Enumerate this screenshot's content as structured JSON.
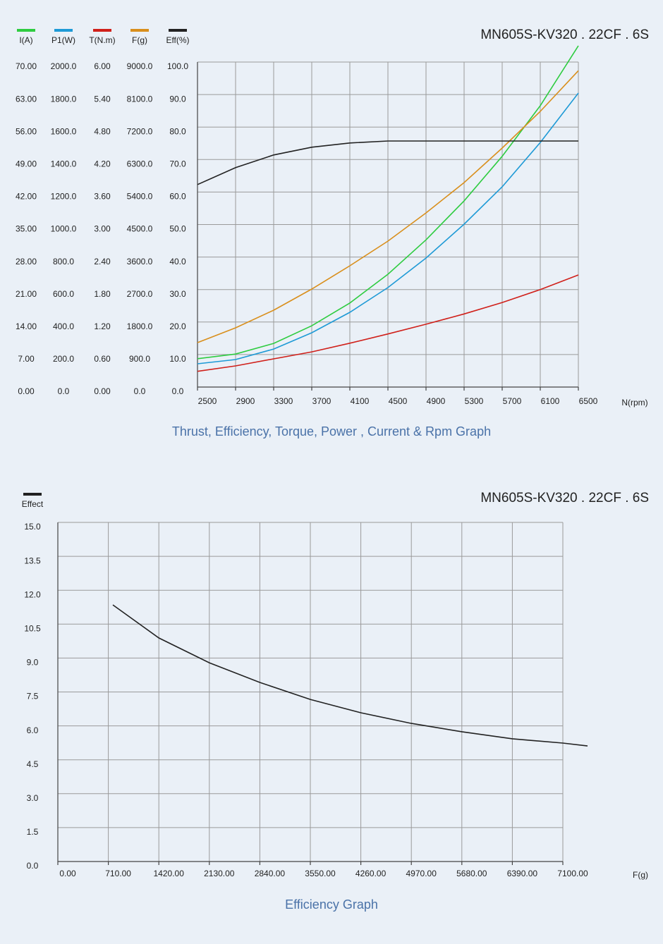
{
  "chart_data": [
    {
      "type": "line",
      "title": "MN605S-KV320 . 22CF . 6S",
      "caption": "Thrust, Efficiency, Torque, Power , Current & Rpm Graph",
      "x_label": "N(rpm)",
      "x": [
        2500,
        2900,
        3300,
        3700,
        4100,
        4500,
        4900,
        5300,
        5700,
        6100,
        6500
      ],
      "xlim": [
        2500,
        6500
      ],
      "xticks": [
        2500,
        2900,
        3300,
        3700,
        4100,
        4500,
        4900,
        5300,
        5700,
        6100,
        6500
      ],
      "grid": true,
      "y_axes": [
        {
          "ylim": [
            0,
            70
          ],
          "yticks": [
            {
              "value": 0,
              "label": "0.00"
            },
            {
              "value": 7,
              "label": "7.00"
            },
            {
              "value": 14,
              "label": "14.00"
            },
            {
              "value": 21,
              "label": "21.00"
            },
            {
              "value": 28,
              "label": "28.00"
            },
            {
              "value": 35,
              "label": "35.00"
            },
            {
              "value": 42,
              "label": "42.00"
            },
            {
              "value": 49,
              "label": "49.00"
            },
            {
              "value": 56,
              "label": "56.00"
            },
            {
              "value": 63,
              "label": "63.00"
            },
            {
              "value": 70,
              "label": "70.00"
            }
          ]
        },
        {
          "ylim": [
            0,
            2000
          ],
          "yticks": [
            {
              "value": 0,
              "label": "0.0"
            },
            {
              "value": 200,
              "label": "200.0"
            },
            {
              "value": 400,
              "label": "400.0"
            },
            {
              "value": 600,
              "label": "600.0"
            },
            {
              "value": 800,
              "label": "800.0"
            },
            {
              "value": 1000,
              "label": "1000.0"
            },
            {
              "value": 1200,
              "label": "1200.0"
            },
            {
              "value": 1400,
              "label": "1400.0"
            },
            {
              "value": 1600,
              "label": "1600.0"
            },
            {
              "value": 1800,
              "label": "1800.0"
            },
            {
              "value": 2000,
              "label": "2000.0"
            }
          ]
        },
        {
          "ylim": [
            0,
            6
          ],
          "yticks": [
            {
              "value": 0,
              "label": "0.00"
            },
            {
              "value": 0.6,
              "label": "0.60"
            },
            {
              "value": 1.2,
              "label": "1.20"
            },
            {
              "value": 1.8,
              "label": "1.80"
            },
            {
              "value": 2.4,
              "label": "2.40"
            },
            {
              "value": 3,
              "label": "3.00"
            },
            {
              "value": 3.6,
              "label": "3.60"
            },
            {
              "value": 4.2,
              "label": "4.20"
            },
            {
              "value": 4.8,
              "label": "4.80"
            },
            {
              "value": 5.4,
              "label": "5.40"
            },
            {
              "value": 6,
              "label": "6.00"
            }
          ]
        },
        {
          "ylim": [
            0,
            9000
          ],
          "yticks": [
            {
              "value": 0,
              "label": "0.0"
            },
            {
              "value": 900,
              "label": "900.0"
            },
            {
              "value": 1800,
              "label": "1800.0"
            },
            {
              "value": 2700,
              "label": "2700.0"
            },
            {
              "value": 3600,
              "label": "3600.0"
            },
            {
              "value": 4500,
              "label": "4500.0"
            },
            {
              "value": 5400,
              "label": "5400.0"
            },
            {
              "value": 6300,
              "label": "6300.0"
            },
            {
              "value": 7200,
              "label": "7200.0"
            },
            {
              "value": 8100,
              "label": "8100.0"
            },
            {
              "value": 9000,
              "label": "9000.0"
            }
          ]
        },
        {
          "ylim": [
            0,
            100
          ],
          "yticks": [
            {
              "value": 0,
              "label": "0.0"
            },
            {
              "value": 10,
              "label": "10.0"
            },
            {
              "value": 20,
              "label": "20.0"
            },
            {
              "value": 30,
              "label": "30.0"
            },
            {
              "value": 40,
              "label": "40.0"
            },
            {
              "value": 50,
              "label": "50.0"
            },
            {
              "value": 60,
              "label": "60.0"
            },
            {
              "value": 70,
              "label": "70.0"
            },
            {
              "value": 80,
              "label": "80.0"
            },
            {
              "value": 90,
              "label": "90.0"
            },
            {
              "value": 100,
              "label": "100.0"
            }
          ]
        }
      ],
      "series": [
        {
          "name": "I(A)",
          "color": "#2ecc40",
          "axis": 0,
          "values": [
            6.1,
            7.1,
            9.4,
            13.2,
            18.1,
            24.3,
            31.7,
            40.1,
            49.7,
            60.6,
            73.5
          ]
        },
        {
          "name": "P1(W)",
          "color": "#1e9ad6",
          "axis": 1,
          "values": [
            143,
            169,
            234,
            334,
            460,
            612,
            794,
            1002,
            1232,
            1505,
            1809
          ]
        },
        {
          "name": "T(N.m)",
          "color": "#d0201a",
          "axis": 2,
          "values": [
            0.29,
            0.39,
            0.52,
            0.65,
            0.81,
            0.98,
            1.16,
            1.35,
            1.56,
            1.8,
            2.07
          ]
        },
        {
          "name": "F(g)",
          "color": "#d98f1c",
          "axis": 3,
          "values": [
            1230,
            1640,
            2128,
            2714,
            3358,
            4041,
            4822,
            5662,
            6618,
            7634,
            8759
          ]
        },
        {
          "name": "Eff(%)",
          "color": "#222222",
          "axis": 4,
          "values": [
            62.3,
            67.5,
            71.4,
            73.8,
            75.1,
            75.7,
            75.7,
            75.7,
            75.7,
            75.7,
            75.7
          ]
        }
      ]
    },
    {
      "type": "line",
      "title": "MN605S-KV320 . 22CF . 6S",
      "caption": "Efficiency Graph",
      "x_label": "F(g)",
      "x": [
        773,
        1420,
        2130,
        2840,
        3550,
        4260,
        4970,
        5680,
        6390,
        7100,
        7447
      ],
      "xlim": [
        0,
        7100
      ],
      "xticks": [
        {
          "value": 0,
          "label": "0.00"
        },
        {
          "value": 710,
          "label": "710.00"
        },
        {
          "value": 1420,
          "label": "1420.00"
        },
        {
          "value": 2130,
          "label": "2130.00"
        },
        {
          "value": 2840,
          "label": "2840.00"
        },
        {
          "value": 3550,
          "label": "3550.00"
        },
        {
          "value": 4260,
          "label": "4260.00"
        },
        {
          "value": 4970,
          "label": "4970.00"
        },
        {
          "value": 5680,
          "label": "5680.00"
        },
        {
          "value": 6390,
          "label": "6390.00"
        },
        {
          "value": 7100,
          "label": "7100.00"
        }
      ],
      "ylim": [
        0,
        15
      ],
      "yticks": [
        {
          "value": 0,
          "label": "0.0"
        },
        1.5,
        {
          "value": 3,
          "label": "3.0"
        },
        4.5,
        {
          "value": 6,
          "label": "6.0"
        },
        7.5,
        {
          "value": 9,
          "label": "9.0"
        },
        10.5,
        {
          "value": 12,
          "label": "12.0"
        },
        13.5,
        {
          "value": 15,
          "label": "15.0"
        }
      ],
      "grid": true,
      "series": [
        {
          "name": "Effect",
          "color": "#222222",
          "values": [
            11.35,
            9.89,
            8.79,
            7.92,
            7.17,
            6.58,
            6.11,
            5.74,
            5.43,
            5.24,
            5.11
          ]
        }
      ]
    }
  ]
}
